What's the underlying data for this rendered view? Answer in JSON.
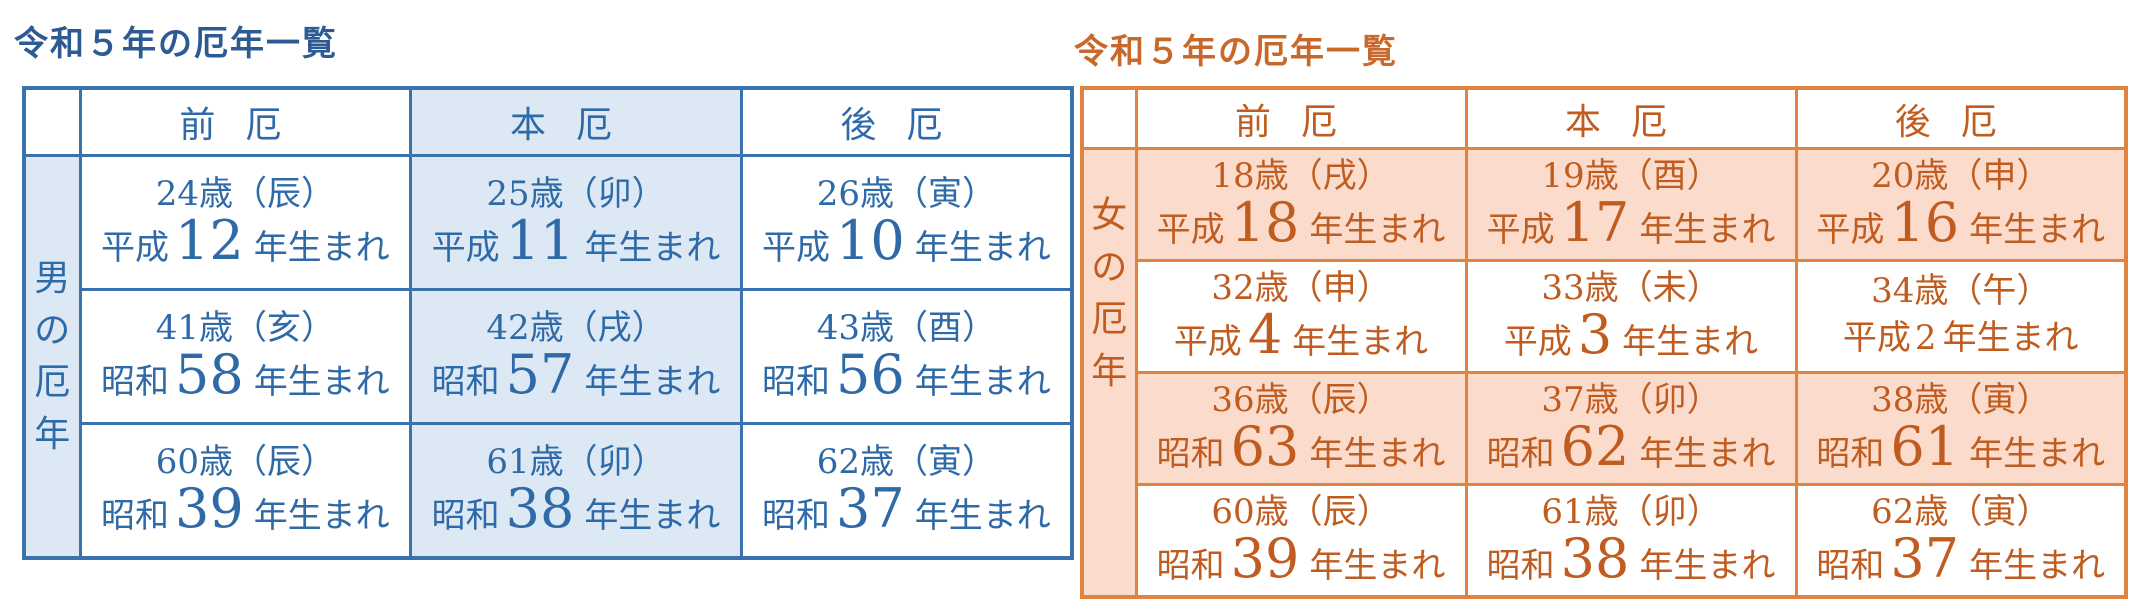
{
  "male": {
    "title": "令和５年の厄年一覧",
    "side_label": [
      "男",
      "の",
      "厄",
      "年"
    ],
    "headers": [
      "前厄",
      "本厄",
      "後厄"
    ],
    "rows": [
      [
        {
          "age": "24歳（辰）",
          "era": "平成",
          "num": "12",
          "suffix": "年生まれ"
        },
        {
          "age": "25歳（卯）",
          "era": "平成",
          "num": "11",
          "suffix": "年生まれ"
        },
        {
          "age": "26歳（寅）",
          "era": "平成",
          "num": "10",
          "suffix": "年生まれ"
        }
      ],
      [
        {
          "age": "41歳（亥）",
          "era": "昭和",
          "num": "58",
          "suffix": "年生まれ"
        },
        {
          "age": "42歳（戌）",
          "era": "昭和",
          "num": "57",
          "suffix": "年生まれ"
        },
        {
          "age": "43歳（酉）",
          "era": "昭和",
          "num": "56",
          "suffix": "年生まれ"
        }
      ],
      [
        {
          "age": "60歳（辰）",
          "era": "昭和",
          "num": "39",
          "suffix": "年生まれ"
        },
        {
          "age": "61歳（卯）",
          "era": "昭和",
          "num": "38",
          "suffix": "年生まれ"
        },
        {
          "age": "62歳（寅）",
          "era": "昭和",
          "num": "37",
          "suffix": "年生まれ"
        }
      ]
    ],
    "colors": {
      "border": "#3a72ad",
      "text": "#2f6aa8",
      "highlight": "#dde8f5"
    }
  },
  "female": {
    "title": "令和５年の厄年一覧",
    "side_label": [
      "女",
      "の",
      "厄",
      "年"
    ],
    "headers": [
      "前厄",
      "本厄",
      "後厄"
    ],
    "rows": [
      [
        {
          "age": "18歳（戌）",
          "era": "平成",
          "num": "18",
          "suffix": "年生まれ"
        },
        {
          "age": "19歳（酉）",
          "era": "平成",
          "num": "17",
          "suffix": "年生まれ"
        },
        {
          "age": "20歳（申）",
          "era": "平成",
          "num": "16",
          "suffix": "年生まれ"
        }
      ],
      [
        {
          "age": "32歳（申）",
          "era": "平成",
          "num": "4",
          "suffix": "年生まれ"
        },
        {
          "age": "33歳（未）",
          "era": "平成",
          "num": "3",
          "suffix": "年生まれ"
        },
        {
          "age": "34歳（午）",
          "era": "平成",
          "num": "2",
          "suffix": "年生まれ"
        }
      ],
      [
        {
          "age": "36歳（辰）",
          "era": "昭和",
          "num": "63",
          "suffix": "年生まれ"
        },
        {
          "age": "37歳（卯）",
          "era": "昭和",
          "num": "62",
          "suffix": "年生まれ"
        },
        {
          "age": "38歳（寅）",
          "era": "昭和",
          "num": "61",
          "suffix": "年生まれ"
        }
      ],
      [
        {
          "age": "60歳（辰）",
          "era": "昭和",
          "num": "39",
          "suffix": "年生まれ"
        },
        {
          "age": "61歳（卯）",
          "era": "昭和",
          "num": "38",
          "suffix": "年生まれ"
        },
        {
          "age": "62歳（寅）",
          "era": "昭和",
          "num": "37",
          "suffix": "年生まれ"
        }
      ]
    ],
    "colors": {
      "border": "#e08240",
      "text": "#c05c1f",
      "highlight": "#fbdccc"
    }
  }
}
